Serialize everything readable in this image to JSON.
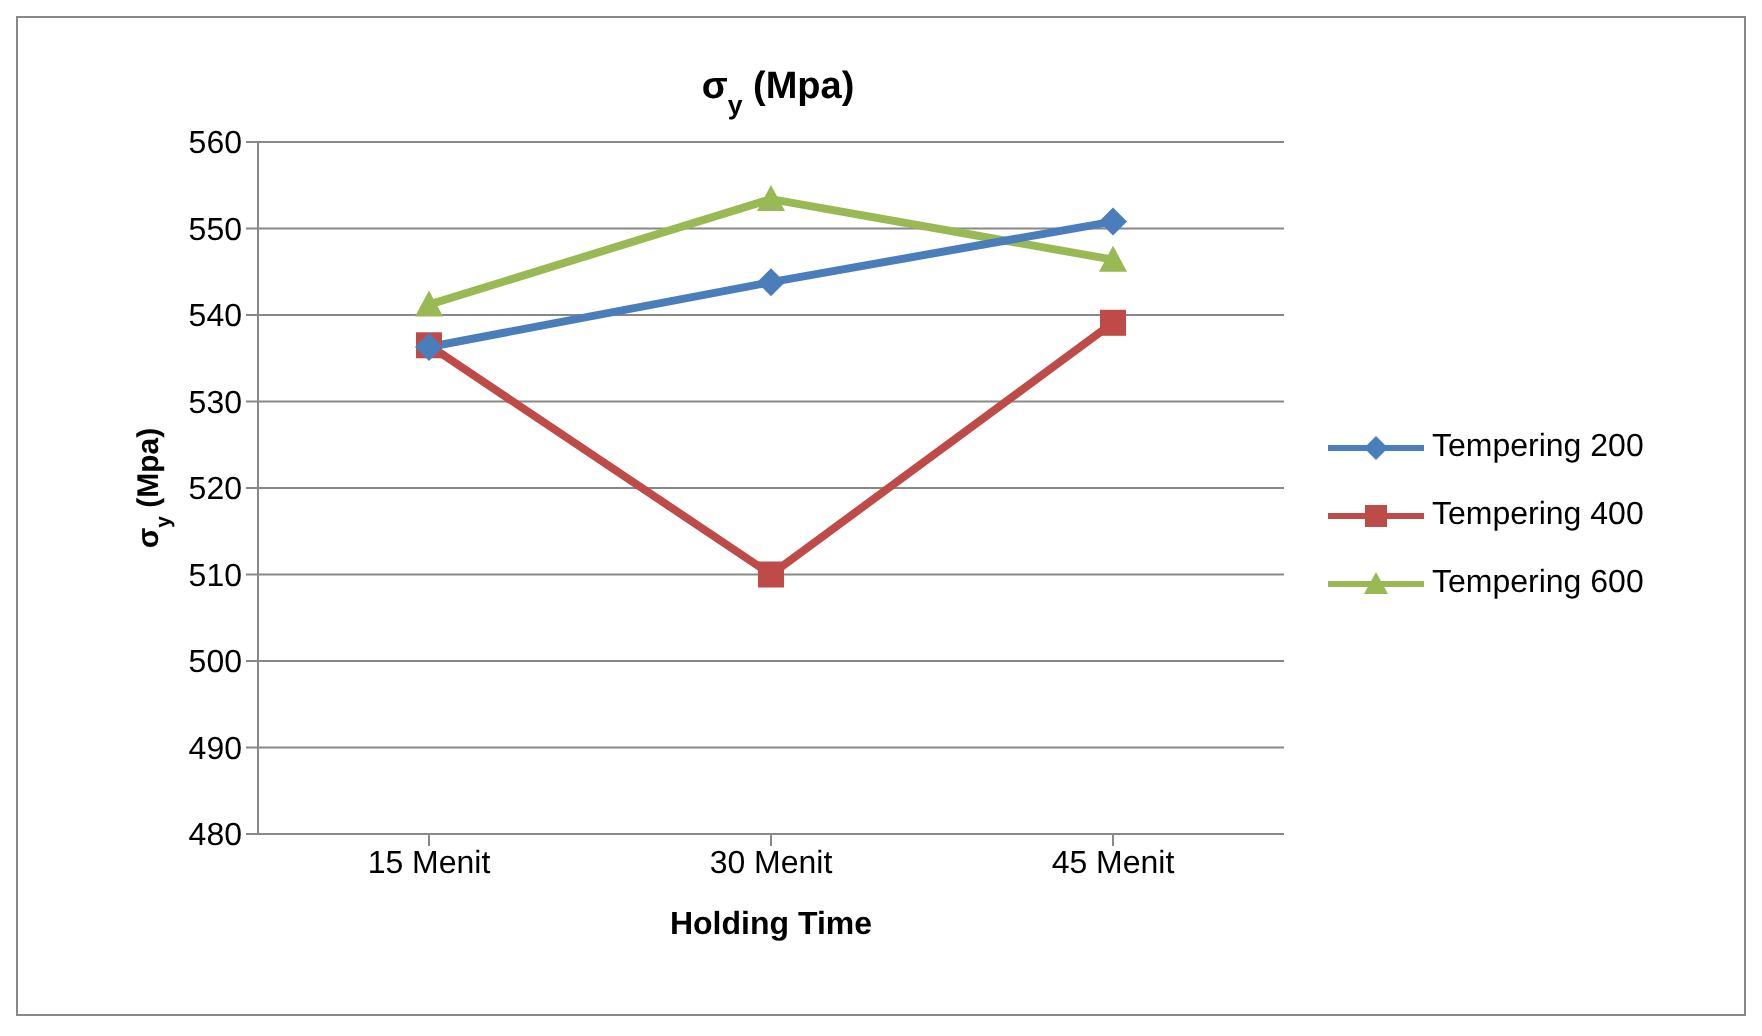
{
  "chart_data": {
    "type": "line",
    "title": "σ$_{y}$ (Mpa)",
    "xlabel": "Holding Time",
    "ylabel": "σ$_{y}$ (Mpa)",
    "categories": [
      "15 Menit",
      "30 Menit",
      "45 Menit"
    ],
    "series": [
      {
        "name": "Tempering 200",
        "color": "#4a7ebb",
        "marker": "diamond",
        "values": [
          536.3,
          543.8,
          550.8
        ]
      },
      {
        "name": "Tempering 400",
        "color": "#be4b48",
        "marker": "square",
        "values": [
          536.5,
          510,
          539.1
        ]
      },
      {
        "name": "Tempering 600",
        "color": "#98b954",
        "marker": "triangle",
        "values": [
          541.2,
          553.4,
          546.4
        ]
      }
    ],
    "ylim": [
      480,
      560
    ],
    "yticks": [
      480,
      490,
      500,
      510,
      520,
      530,
      540,
      550,
      560
    ],
    "grid": "y",
    "legend": "right",
    "line_style": "solid"
  }
}
